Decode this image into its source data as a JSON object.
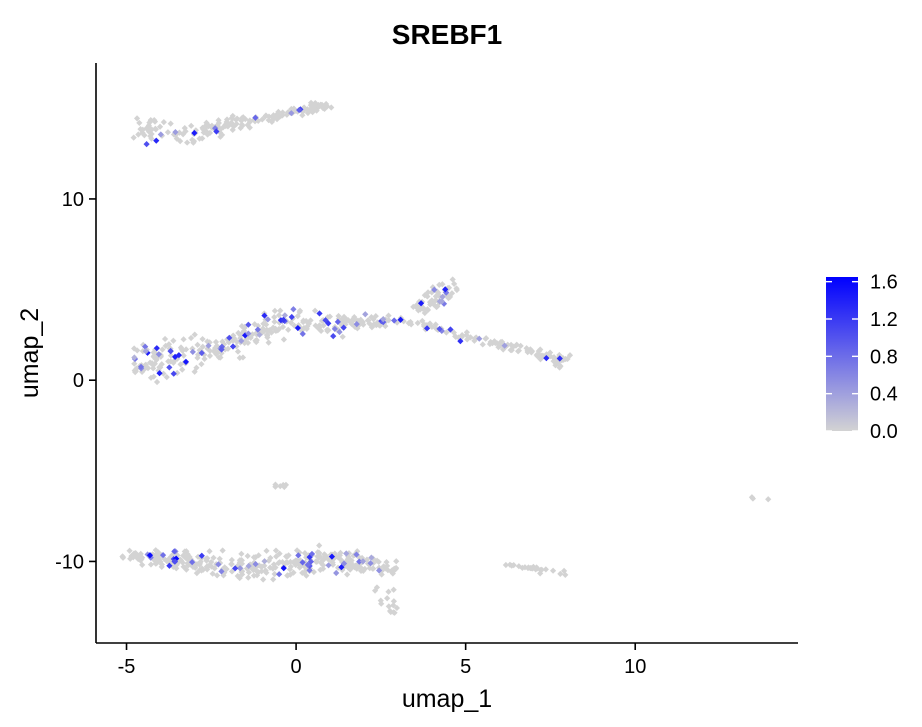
{
  "chart_data": {
    "type": "scatter",
    "title": "SREBF1",
    "xlabel": "umap_1",
    "ylabel": "umap_2",
    "xlim": [
      -5.9,
      14.8
    ],
    "ylim": [
      -14.5,
      17.5
    ],
    "xticks": [
      -5,
      0,
      5,
      10
    ],
    "yticks": [
      -10,
      0,
      10
    ],
    "grid": false,
    "legend": {
      "placement": "right",
      "min": 0.0,
      "max": 1.65,
      "ticks": [
        0.0,
        0.4,
        0.8,
        1.2,
        1.6
      ],
      "tick_labels": [
        "0.0",
        "0.4",
        "0.8",
        "1.2",
        "1.6"
      ],
      "low_color": "#d3d3d3",
      "high_color": "#0000ff"
    },
    "clusters": [
      {
        "id": "top-band",
        "n": 190,
        "seed": 11,
        "expr_fraction": 0.06,
        "path": [
          [
            -4.8,
            13.8
          ],
          [
            -4.0,
            13.6
          ],
          [
            -3.0,
            13.4
          ],
          [
            -2.2,
            14.0
          ],
          [
            -1.5,
            14.3
          ],
          [
            -0.5,
            14.6
          ],
          [
            0.5,
            15.0
          ],
          [
            0.7,
            15.2
          ]
        ],
        "widths": [
          0.8,
          0.8,
          0.6,
          0.4,
          0.3,
          0.2,
          0.2,
          0.2
        ]
      },
      {
        "id": "middle-band",
        "n": 330,
        "seed": 23,
        "expr_fraction": 0.14,
        "path": [
          [
            -4.7,
            1.2
          ],
          [
            -4.0,
            1.0
          ],
          [
            -3.0,
            1.5
          ],
          [
            -2.0,
            2.0
          ],
          [
            -1.0,
            2.8
          ],
          [
            0.0,
            3.2
          ],
          [
            1.0,
            3.0
          ],
          [
            2.0,
            3.2
          ],
          [
            3.0,
            3.3
          ]
        ],
        "widths": [
          1.0,
          1.1,
          1.0,
          0.8,
          0.9,
          0.9,
          0.7,
          0.4,
          0.2
        ]
      },
      {
        "id": "middle-tail",
        "n": 110,
        "seed": 31,
        "expr_fraction": 0.06,
        "path": [
          [
            3.2,
            3.3
          ],
          [
            4.0,
            3.0
          ],
          [
            5.0,
            2.4
          ],
          [
            6.0,
            2.0
          ],
          [
            7.0,
            1.5
          ],
          [
            7.6,
            1.2
          ],
          [
            7.9,
            1.0
          ]
        ],
        "widths": [
          0.2,
          0.2,
          0.25,
          0.2,
          0.25,
          0.3,
          0.4
        ]
      },
      {
        "id": "middle-bulb",
        "n": 60,
        "seed": 37,
        "expr_fraction": 0.15,
        "path": [
          [
            3.6,
            4.0
          ],
          [
            4.2,
            4.6
          ],
          [
            4.6,
            5.3
          ]
        ],
        "widths": [
          0.4,
          0.6,
          0.5
        ]
      },
      {
        "id": "small-isolate",
        "n": 6,
        "seed": 41,
        "expr_fraction": 0.0,
        "path": [
          [
            -0.6,
            -5.8
          ],
          [
            -0.4,
            -5.9
          ]
        ],
        "widths": [
          0.15,
          0.15
        ]
      },
      {
        "id": "far-isolate",
        "n": 3,
        "seed": 43,
        "expr_fraction": 0.0,
        "path": [
          [
            13.7,
            -6.6
          ],
          [
            13.9,
            -6.4
          ]
        ],
        "widths": [
          0.1,
          0.1
        ]
      },
      {
        "id": "bottom-band",
        "n": 380,
        "seed": 53,
        "expr_fraction": 0.12,
        "path": [
          [
            -4.9,
            -9.6
          ],
          [
            -4.0,
            -9.9
          ],
          [
            -3.0,
            -10.0
          ],
          [
            -2.0,
            -10.3
          ],
          [
            -1.0,
            -10.3
          ],
          [
            0.0,
            -10.0
          ],
          [
            1.0,
            -9.9
          ],
          [
            2.0,
            -10.2
          ],
          [
            2.9,
            -10.4
          ]
        ],
        "widths": [
          0.3,
          0.45,
          0.6,
          0.8,
          0.8,
          0.8,
          0.8,
          0.6,
          0.4
        ]
      },
      {
        "id": "bottom-drip",
        "n": 15,
        "seed": 59,
        "expr_fraction": 0.0,
        "path": [
          [
            2.5,
            -11.2
          ],
          [
            2.8,
            -12.3
          ],
          [
            2.9,
            -12.8
          ]
        ],
        "widths": [
          0.15,
          0.15,
          0.15
        ]
      },
      {
        "id": "bottom-right-arc",
        "n": 25,
        "seed": 61,
        "expr_fraction": 0.0,
        "path": [
          [
            6.2,
            -10.2
          ],
          [
            7.0,
            -10.4
          ],
          [
            8.0,
            -10.8
          ]
        ],
        "widths": [
          0.12,
          0.12,
          0.12
        ]
      }
    ]
  }
}
